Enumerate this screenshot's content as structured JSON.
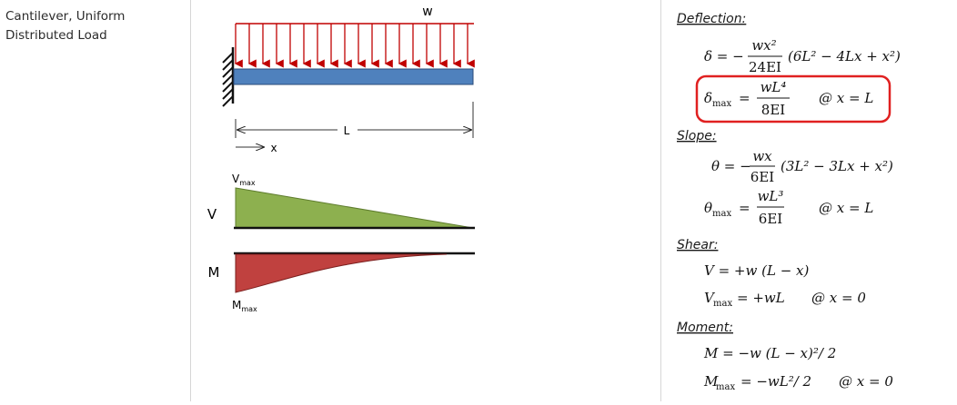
{
  "case_title": "Cantilever, Uniform Distributed Load",
  "diagram": {
    "load_label": "w",
    "length_label": "L",
    "x_label": "x",
    "shear_label": "V",
    "moment_label": "M",
    "vmax_main": "V",
    "vmax_sub": "max",
    "mmax_main": "M",
    "mmax_sub": "max"
  },
  "formulas": {
    "deflection_header": "Deflection:",
    "slope_header": "Slope:",
    "shear_header": "Shear:",
    "moment_header": "Moment:",
    "delta_eq": "δ = −",
    "delta_num": "wx²",
    "delta_den": "24EI",
    "delta_rhs": "(6L² − 4Lx + x²)",
    "dmax_sym": "δ",
    "dmax_sub": "max",
    "dmax_eq": "=",
    "dmax_num": "wL⁴",
    "dmax_den": "8EI",
    "dmax_at": "@ x = L",
    "theta_eq": "θ = −",
    "theta_num": "wx",
    "theta_den": "6EI",
    "theta_rhs": "(3L² − 3Lx + x²)",
    "tmax_sym": "θ",
    "tmax_sub": "max",
    "tmax_eq": "=",
    "tmax_num": "wL³",
    "tmax_den": "6EI",
    "tmax_at": "@ x = L",
    "v_eq": "V = +w (L − x)",
    "vmax_sym": "V",
    "vmax_sub": "max",
    "vmax_rhs": "= +wL",
    "vmax_at": "@ x = 0",
    "m_eq": "M = −w (L − x)²/ 2",
    "mmax_sym": "M",
    "mmax_sub": "max",
    "mmax_rhs": "= −wL²/ 2",
    "mmax_at": "@ x = 0"
  },
  "colors": {
    "beam_fill": "#4f81bd",
    "load_arrows": "#c00000",
    "shear_fill": "#8db04f",
    "moment_fill": "#c0413f",
    "highlight_box": "#e02020"
  }
}
